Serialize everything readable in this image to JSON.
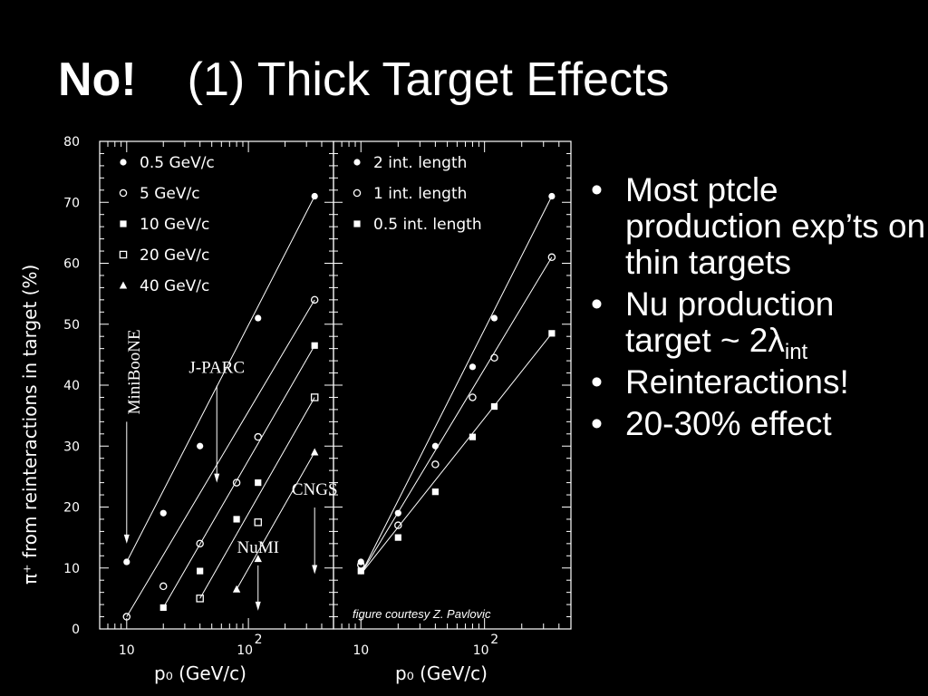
{
  "title": {
    "bold": "No!",
    "rest": "(1) Thick Target Effects"
  },
  "bullets": [
    {
      "text": "Most ptcle production exp’ts on thin targets"
    },
    {
      "text": "Nu production target ~ 2λ",
      "sub": "int"
    },
    {
      "text": "Reinteractions!"
    },
    {
      "text": "20-30% effect"
    }
  ],
  "colors": {
    "background": "#000000",
    "foreground": "#ffffff"
  },
  "chart_data": [
    {
      "type": "scatter",
      "panel": "left",
      "ylabel": "π⁺ from reinteractions in target (%)",
      "xlabel": "p₀ (GeV/c)",
      "x_scale": "log",
      "xlim": [
        6,
        500
      ],
      "ylim": [
        0,
        80
      ],
      "x_tick_labels": [
        "10",
        "10²"
      ],
      "y_ticks": [
        0,
        10,
        20,
        30,
        40,
        50,
        60,
        70,
        80
      ],
      "legend_position": "top-left",
      "series": [
        {
          "name": "0.5 GeV/c",
          "marker": "filled-circle",
          "points": [
            [
              10,
              11
            ],
            [
              20,
              19
            ],
            [
              40,
              30
            ],
            [
              120,
              51
            ],
            [
              350,
              71
            ]
          ]
        },
        {
          "name": "5 GeV/c",
          "marker": "open-circle",
          "points": [
            [
              10,
              2
            ],
            [
              20,
              7
            ],
            [
              40,
              14
            ],
            [
              80,
              24
            ],
            [
              120,
              31.5
            ],
            [
              350,
              54
            ]
          ]
        },
        {
          "name": "10 GeV/c",
          "marker": "filled-square",
          "points": [
            [
              20,
              3.5
            ],
            [
              40,
              9.5
            ],
            [
              80,
              18
            ],
            [
              120,
              24
            ],
            [
              350,
              46.5
            ]
          ]
        },
        {
          "name": "20 GeV/c",
          "marker": "open-square",
          "points": [
            [
              40,
              5
            ],
            [
              120,
              17.5
            ],
            [
              350,
              38
            ]
          ]
        },
        {
          "name": "40 GeV/c",
          "marker": "filled-triangle",
          "points": [
            [
              80,
              6.5
            ],
            [
              120,
              11.5
            ],
            [
              350,
              29
            ]
          ]
        }
      ],
      "fit_lines": [
        {
          "from": [
            10,
            11
          ],
          "to": [
            350,
            71
          ]
        },
        {
          "from": [
            10,
            2
          ],
          "to": [
            350,
            54
          ]
        },
        {
          "from": [
            20,
            3.5
          ],
          "to": [
            350,
            46.5
          ]
        },
        {
          "from": [
            40,
            5
          ],
          "to": [
            350,
            38
          ]
        },
        {
          "from": [
            80,
            6.5
          ],
          "to": [
            350,
            29
          ]
        }
      ],
      "annotations": [
        {
          "text": "MiniBooNE",
          "x": 10,
          "y": 45,
          "arrow_to": [
            10,
            14
          ],
          "rotated": true
        },
        {
          "text": "J-PARC",
          "x": 55,
          "y": 42,
          "arrow_to": [
            55,
            24
          ]
        },
        {
          "text": "NuMI",
          "x": 120,
          "y": 12.5,
          "arrow_to": [
            120,
            3
          ]
        },
        {
          "text": "CNGS",
          "x": 350,
          "y": 22,
          "arrow_to": [
            350,
            9
          ]
        }
      ]
    },
    {
      "type": "scatter",
      "panel": "right",
      "xlabel": "p₀ (GeV/c)",
      "x_scale": "log",
      "xlim": [
        6,
        500
      ],
      "ylim": [
        0,
        80
      ],
      "x_tick_labels": [
        "10",
        "10²"
      ],
      "legend_position": "top-left",
      "series": [
        {
          "name": "2 int. length",
          "marker": "filled-circle",
          "points": [
            [
              10,
              11
            ],
            [
              20,
              19
            ],
            [
              40,
              30
            ],
            [
              80,
              43
            ],
            [
              120,
              51
            ],
            [
              350,
              71
            ]
          ]
        },
        {
          "name": "1 int. length",
          "marker": "open-circle",
          "points": [
            [
              10,
              10.5
            ],
            [
              20,
              17
            ],
            [
              40,
              27
            ],
            [
              80,
              38
            ],
            [
              120,
              44.5
            ],
            [
              350,
              61
            ]
          ]
        },
        {
          "name": "0.5 int. length",
          "marker": "filled-square",
          "points": [
            [
              10,
              9.5
            ],
            [
              20,
              15
            ],
            [
              40,
              22.5
            ],
            [
              80,
              31.5
            ],
            [
              120,
              36.5
            ],
            [
              350,
              48.5
            ]
          ]
        }
      ],
      "fit_lines": [
        {
          "from": [
            10,
            9
          ],
          "to": [
            350,
            71
          ]
        },
        {
          "from": [
            10,
            9
          ],
          "to": [
            350,
            61
          ]
        },
        {
          "from": [
            10,
            9
          ],
          "to": [
            350,
            48.5
          ]
        }
      ],
      "credit": "figure courtesy Z. Pavlovic"
    }
  ]
}
